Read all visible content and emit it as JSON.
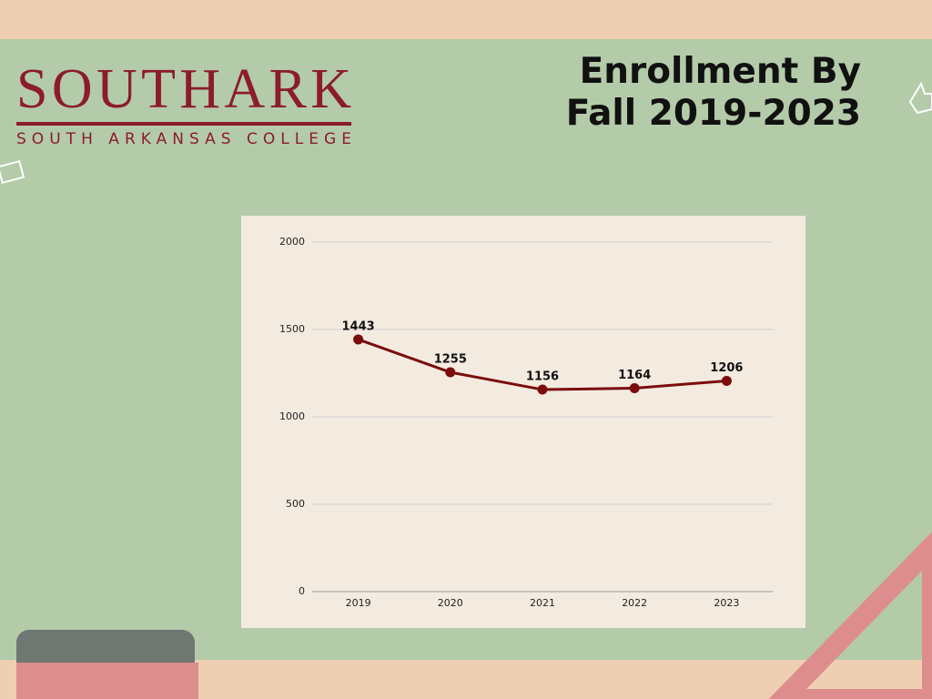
{
  "logo": {
    "name": "SOUTHARK",
    "tagline": "SOUTH ARKANSAS COLLEGE"
  },
  "chart_data": {
    "type": "line",
    "title": "Enrollment By Fall 2019-2023",
    "categories": [
      "2019",
      "2020",
      "2021",
      "2022",
      "2023"
    ],
    "values": [
      1443,
      1255,
      1156,
      1164,
      1206
    ],
    "color": "#7a0c0c",
    "ylim": [
      0,
      2000
    ],
    "yticks": [
      0,
      500,
      1000,
      1500,
      2000
    ],
    "grid": true
  }
}
